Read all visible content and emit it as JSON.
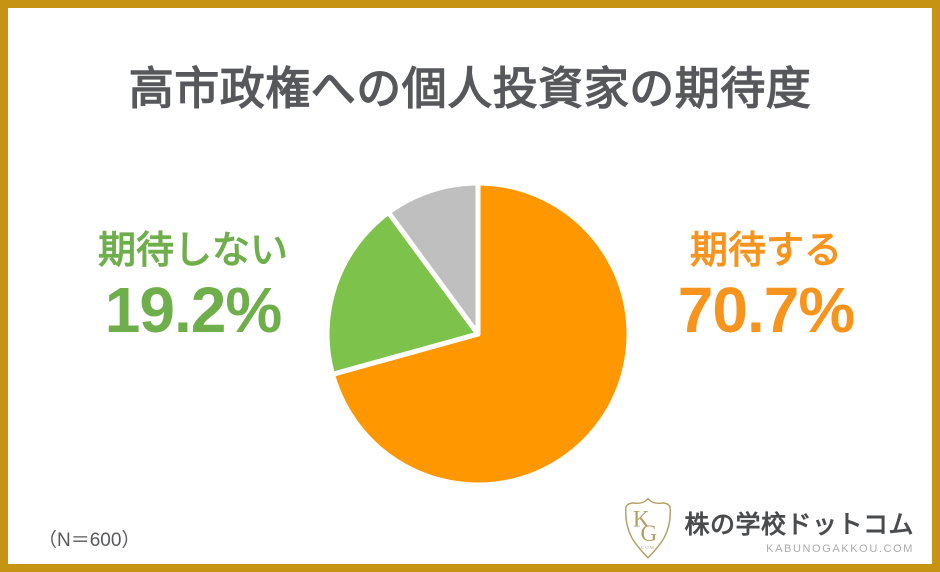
{
  "chart_data": {
    "type": "pie",
    "title": "高市政権への個人投資家の期待度",
    "start_angle_deg": 0,
    "direction": "clockwise",
    "legend": "none",
    "slice_gap_color": "#FFFFFF",
    "slices": [
      {
        "label": "期待する",
        "value": 70.7,
        "value_label": "70.7%",
        "color": "#FF9800",
        "label_color": "#F7941D",
        "label_position": "right"
      },
      {
        "label": "期待しない",
        "value": 19.2,
        "value_label": "19.2%",
        "color": "#7DC24A",
        "label_color": "#6EAE4B",
        "label_position": "left"
      },
      {
        "label": "",
        "value": 10.1,
        "value_label": "",
        "color": "#BFBFBF",
        "label_color": "",
        "label_position": "none"
      }
    ]
  },
  "footer": {
    "sample_note": "（N＝600）",
    "brand_name": "株の学校ドットコム",
    "brand_domain": "KABUNOGAKKOU.COM",
    "brand_shield_k": "K",
    "brand_shield_g": "G",
    "brand_shield_sub": "COM"
  },
  "colors": {
    "frame_border": "#C79312",
    "background": "#FFFFFF",
    "title_text": "#57585C",
    "note_text": "#58595B",
    "brand_text": "#4A4B4D",
    "brand_domain_text": "#ABABAB",
    "brand_gold": "#B3A065"
  }
}
